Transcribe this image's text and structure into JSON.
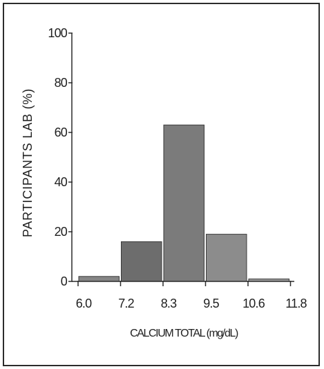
{
  "chart_data": {
    "type": "bar",
    "title": "",
    "xlabel": "CALCIUM TOTAL (mg/dL)",
    "ylabel": "PARTICIPANTS LAB (%)",
    "x_ticks": [
      "6.0",
      "7.2",
      "8.3",
      "9.5",
      "10.6",
      "11.8"
    ],
    "y_ticks": [
      "0",
      "20",
      "40",
      "60",
      "80",
      "100"
    ],
    "ylim": [
      0,
      100
    ],
    "bins": [
      {
        "from": "6.0",
        "to": "7.2",
        "value": 2
      },
      {
        "from": "7.2",
        "to": "8.3",
        "value": 16
      },
      {
        "from": "8.3",
        "to": "9.5",
        "value": 63
      },
      {
        "from": "9.5",
        "to": "10.6",
        "value": 19
      },
      {
        "from": "10.6",
        "to": "11.8",
        "value": 1
      }
    ],
    "bar_colors": [
      "#858585",
      "#6d6d6d",
      "#7b7b7b",
      "#8c8c8c",
      "#9a9a9a"
    ],
    "grid": false,
    "legend": "none"
  }
}
